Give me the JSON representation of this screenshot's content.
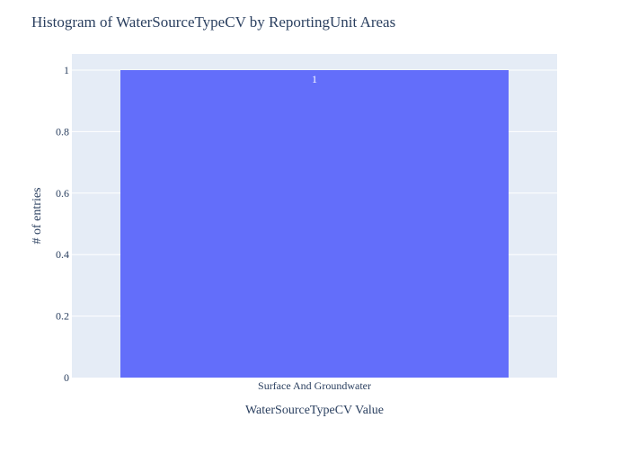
{
  "chart_data": {
    "type": "bar",
    "title": "Histogram of WaterSourceTypeCV by ReportingUnit Areas",
    "xlabel": "WaterSourceTypeCV Value",
    "ylabel": "# of entries",
    "categories": [
      "Surface And Groundwater"
    ],
    "values": [
      1
    ],
    "data_labels": [
      "1"
    ],
    "ylim": [
      0,
      1
    ],
    "yticks": [
      0,
      0.2,
      0.4,
      0.6,
      0.8,
      1
    ],
    "ytick_labels": [
      "0",
      "0.2",
      "0.4",
      "0.6",
      "0.8",
      "1"
    ],
    "grid": true,
    "legend": "none"
  },
  "colors": {
    "bar": "#636efa",
    "plot_background": "#e5ecf6",
    "gridline": "#ffffff",
    "text": "#2a3f5f",
    "data_label": "#ffffff"
  }
}
